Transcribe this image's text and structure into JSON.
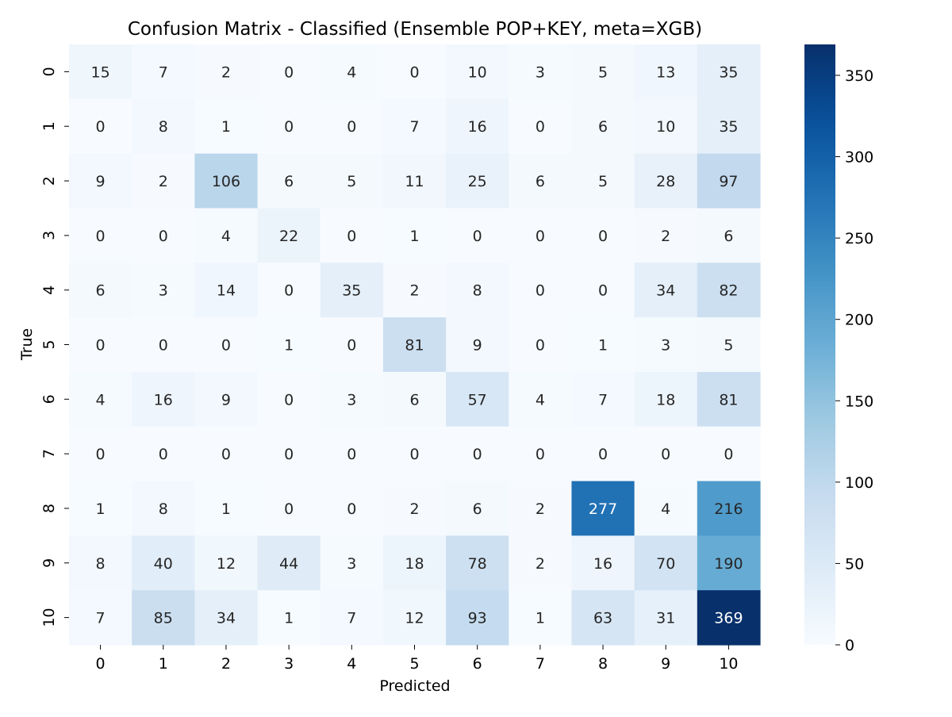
{
  "chart_data": {
    "type": "heatmap",
    "title": "Confusion Matrix - Classified (Ensemble POP+KEY, meta=XGB)",
    "xlabel": "Predicted",
    "ylabel": "True",
    "x_categories": [
      "0",
      "1",
      "2",
      "3",
      "4",
      "5",
      "6",
      "7",
      "8",
      "9",
      "10"
    ],
    "y_categories": [
      "0",
      "1",
      "2",
      "3",
      "4",
      "5",
      "6",
      "7",
      "8",
      "9",
      "10"
    ],
    "matrix": [
      [
        15,
        7,
        2,
        0,
        4,
        0,
        10,
        3,
        5,
        13,
        35
      ],
      [
        0,
        8,
        1,
        0,
        0,
        7,
        16,
        0,
        6,
        10,
        35
      ],
      [
        9,
        2,
        106,
        6,
        5,
        11,
        25,
        6,
        5,
        28,
        97
      ],
      [
        0,
        0,
        4,
        22,
        0,
        1,
        0,
        0,
        0,
        2,
        6
      ],
      [
        6,
        3,
        14,
        0,
        35,
        2,
        8,
        0,
        0,
        34,
        82
      ],
      [
        0,
        0,
        0,
        1,
        0,
        81,
        9,
        0,
        1,
        3,
        5
      ],
      [
        4,
        16,
        9,
        0,
        3,
        6,
        57,
        4,
        7,
        18,
        81
      ],
      [
        0,
        0,
        0,
        0,
        0,
        0,
        0,
        0,
        0,
        0,
        0
      ],
      [
        1,
        8,
        1,
        0,
        0,
        2,
        6,
        2,
        277,
        4,
        216
      ],
      [
        8,
        40,
        12,
        44,
        3,
        18,
        78,
        2,
        16,
        70,
        190
      ],
      [
        7,
        85,
        34,
        1,
        7,
        12,
        93,
        1,
        63,
        31,
        369
      ]
    ],
    "colorbar": {
      "colormap": "Blues",
      "range": [
        0,
        369
      ],
      "ticks": [
        0,
        50,
        100,
        150,
        200,
        250,
        300,
        350
      ],
      "tick_labels": [
        "0",
        "50",
        "100",
        "150",
        "200",
        "250",
        "300",
        "350"
      ]
    },
    "grid": false
  }
}
